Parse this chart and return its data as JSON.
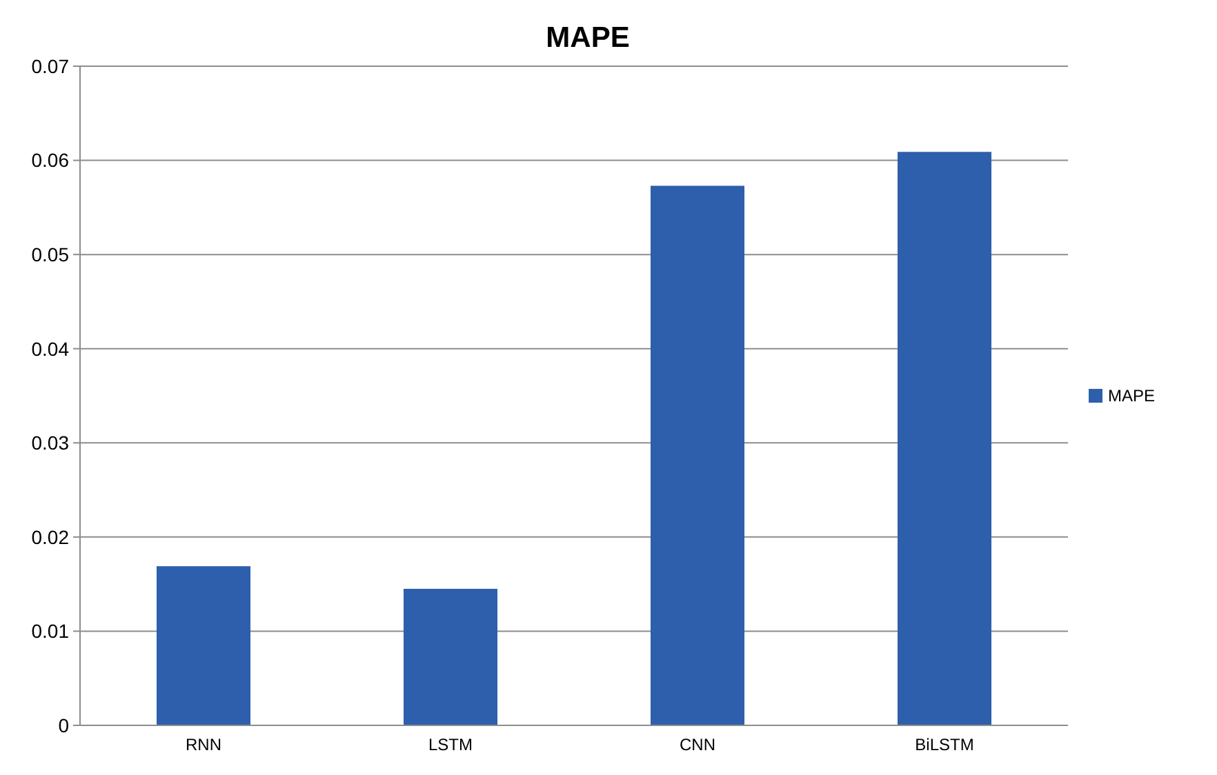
{
  "chart_data": {
    "type": "bar",
    "title": "MAPE",
    "categories": [
      "RNN",
      "LSTM",
      "CNN",
      "BiLSTM"
    ],
    "series": [
      {
        "name": "MAPE",
        "color": "#2e5fac",
        "values": [
          0.0169,
          0.0145,
          0.0573,
          0.0609
        ]
      }
    ],
    "ylim": [
      0,
      0.07
    ],
    "yticks": [
      0,
      0.01,
      0.02,
      0.03,
      0.04,
      0.05,
      0.06,
      0.07
    ],
    "grid": "y",
    "legend": "right"
  }
}
